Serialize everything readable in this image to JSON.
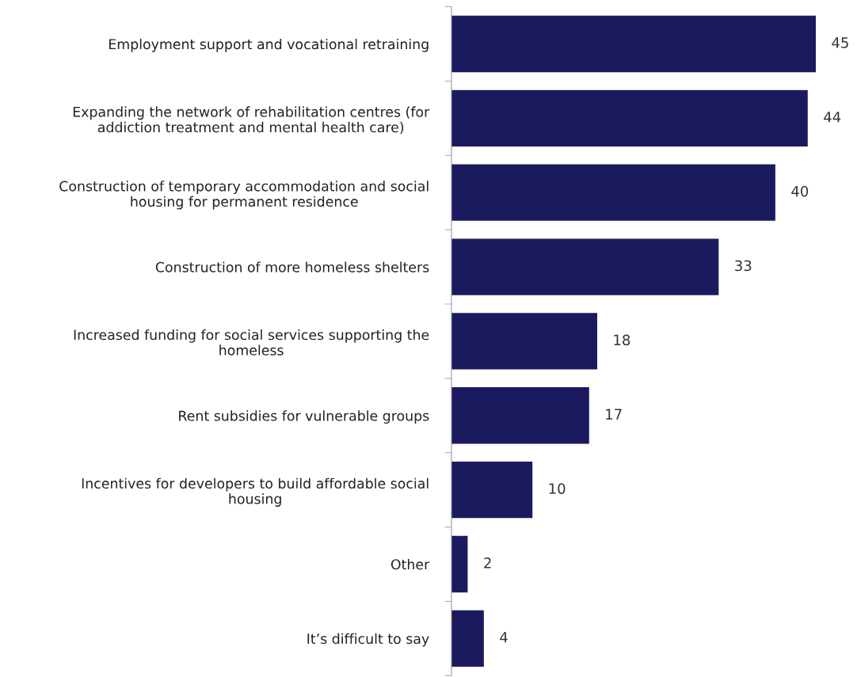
{
  "chart_data": {
    "type": "bar",
    "orientation": "horizontal",
    "categories": [
      "Employment support and vocational retraining",
      "Expanding the network of rehabilitation centres (for addiction treatment and mental health care)",
      "Construction of temporary accommodation and social housing for permanent residence",
      "Construction of more homeless shelters",
      "Increased funding for social services supporting the homeless",
      "Rent subsidies for vulnerable groups",
      "Incentives for developers to build affordable social housing",
      "Other",
      "It’s difficult to say"
    ],
    "values": [
      45,
      44,
      40,
      33,
      18,
      17,
      10,
      2,
      4
    ],
    "color": "#1c1a5e",
    "data_labels": true,
    "grid": false,
    "legend": false
  }
}
